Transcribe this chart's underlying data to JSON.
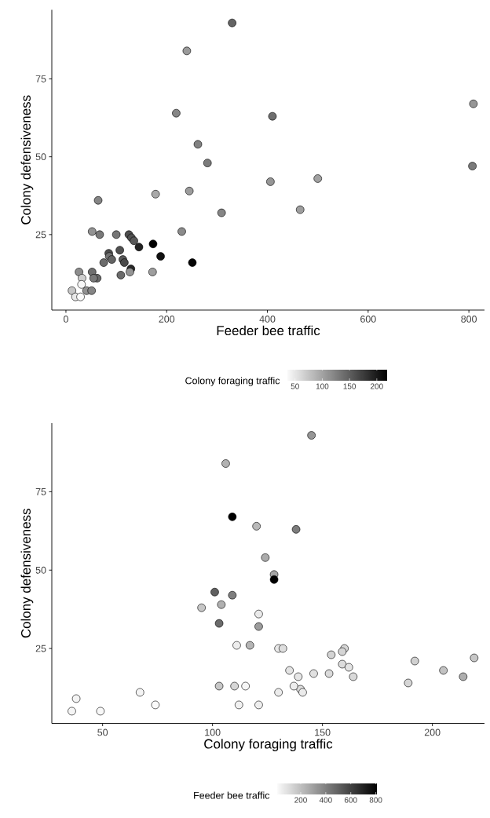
{
  "chart_data": [
    {
      "type": "scatter",
      "xlabel": "Feeder bee traffic",
      "ylabel": "Colony defensiveness",
      "clabel": "Colony foraging traffic",
      "marker": "circle",
      "x": [
        330,
        240,
        809,
        219,
        410,
        262,
        281,
        807,
        500,
        406,
        245,
        178,
        64,
        465,
        309,
        52,
        230,
        67,
        100,
        125,
        130,
        135,
        173,
        145,
        188,
        107,
        85,
        86,
        91,
        113,
        75,
        116,
        251,
        129,
        127,
        172,
        109,
        26,
        52,
        62,
        55,
        32,
        31,
        41,
        51,
        12,
        19,
        29
      ],
      "values": [
        93,
        84,
        67,
        64,
        63,
        54,
        48,
        47,
        43,
        42,
        39,
        38,
        36,
        33,
        32,
        26,
        26,
        25,
        25,
        25,
        24,
        23,
        22,
        21,
        18,
        20,
        19,
        18,
        17,
        17,
        16,
        16,
        16,
        14,
        13,
        13,
        12,
        13,
        13,
        11,
        11,
        11,
        9,
        7,
        7,
        7,
        5,
        5
      ],
      "cvalues": [
        145,
        106,
        109,
        120,
        138,
        124,
        128,
        128,
        101,
        109,
        104,
        95,
        121,
        103,
        121,
        111,
        117,
        130,
        132,
        160,
        159,
        154,
        219,
        192,
        205,
        159,
        162,
        135,
        146,
        153,
        139,
        164,
        214,
        189,
        110,
        103,
        140,
        115,
        137,
        141,
        130,
        67,
        38,
        112,
        121,
        74,
        49,
        36
      ],
      "xlim": [
        -28,
        831
      ],
      "ylim": [
        0.76,
        97.2
      ],
      "xticks": [
        0,
        200,
        400,
        600,
        800
      ],
      "yticks": [
        25,
        50,
        75
      ],
      "clim": [
        36,
        219
      ],
      "cticks": [
        50,
        100,
        150,
        200
      ]
    },
    {
      "type": "scatter",
      "xlabel": "Colony foraging traffic",
      "ylabel": "Colony defensiveness",
      "clabel": "Feeder bee traffic",
      "marker": "circle",
      "x": [
        145,
        106,
        109,
        120,
        138,
        124,
        128,
        128,
        101,
        109,
        104,
        95,
        121,
        103,
        121,
        111,
        117,
        130,
        132,
        160,
        159,
        154,
        219,
        192,
        205,
        159,
        162,
        135,
        146,
        153,
        139,
        164,
        214,
        189,
        110,
        103,
        140,
        115,
        137,
        141,
        130,
        67,
        38,
        112,
        121,
        74,
        49,
        36
      ],
      "values": [
        93,
        84,
        67,
        64,
        63,
        54,
        48.6,
        47,
        43,
        42,
        39,
        38,
        36,
        33,
        32,
        26,
        26,
        25,
        25,
        25,
        24,
        23,
        22,
        21,
        18,
        20,
        19,
        18,
        17,
        17,
        16,
        16,
        16,
        14,
        13,
        13,
        12,
        13,
        13,
        11,
        11,
        11,
        9,
        7,
        7,
        7,
        5,
        5
      ],
      "cvalues": [
        330,
        240,
        809,
        219,
        410,
        262,
        281,
        807,
        500,
        406,
        245,
        178,
        64,
        465,
        309,
        52,
        230,
        67,
        100,
        125,
        130,
        135,
        173,
        145,
        188,
        107,
        85,
        86,
        91,
        113,
        75,
        116,
        251,
        129,
        127,
        172,
        109,
        26,
        52,
        60,
        57,
        32,
        31,
        41,
        51,
        12,
        19,
        29
      ],
      "xlim": [
        26.9,
        223.7
      ],
      "ylim": [
        1.1,
        96.9
      ],
      "xticks": [
        50,
        100,
        150,
        200
      ],
      "yticks": [
        25,
        50,
        75
      ],
      "clim": [
        12,
        809
      ],
      "cticks": [
        200,
        400,
        600,
        800
      ]
    }
  ]
}
